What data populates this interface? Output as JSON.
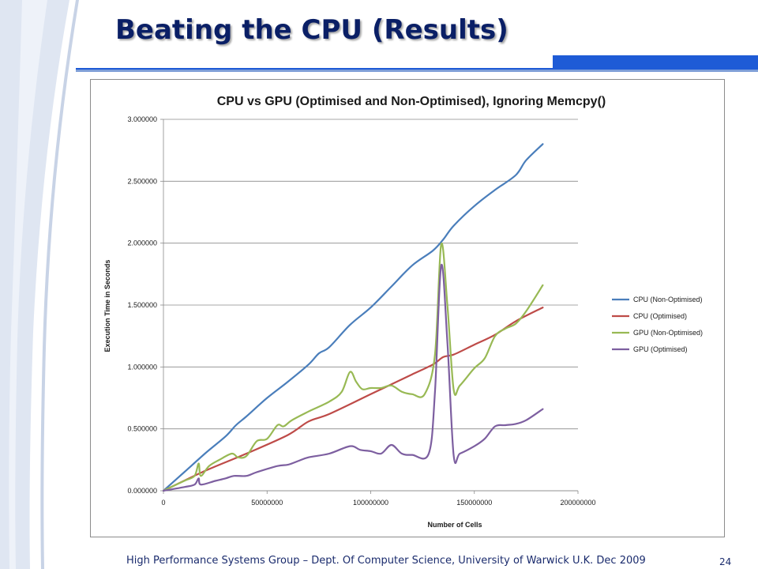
{
  "slide": {
    "title": "Beating the CPU (Results)",
    "footer": "High Performance Systems Group – Dept. Of Computer Science, University of Warwick U.K. Dec 2009",
    "page_number": "24"
  },
  "colors": {
    "title": "#0a1f66",
    "accent_blue": "#1e5bd6",
    "decor_light": "#dfe6f2"
  },
  "chart_data": {
    "type": "line",
    "title": "CPU vs GPU (Optimised and Non-Optimised), Ignoring Memcpy()",
    "xlabel": "Number of Cells",
    "ylabel": "Execution Time in Seconds",
    "xlim": [
      0,
      200000000
    ],
    "ylim": [
      0,
      3
    ],
    "x_ticks": [
      "0",
      "50000000",
      "100000000",
      "150000000",
      "200000000"
    ],
    "y_ticks": [
      "0.000000",
      "0.500000",
      "1.000000",
      "1.500000",
      "2.000000",
      "2.500000",
      "3.000000"
    ],
    "grid": "horizontal",
    "legend": "right",
    "series": [
      {
        "name": "CPU (Non-Optimised)",
        "color": "#4a7ebb",
        "points": [
          [
            0,
            0
          ],
          [
            10000000,
            0.15
          ],
          [
            20000000,
            0.3
          ],
          [
            30000000,
            0.44
          ],
          [
            35000000,
            0.53
          ],
          [
            40000000,
            0.6
          ],
          [
            50000000,
            0.75
          ],
          [
            60000000,
            0.88
          ],
          [
            70000000,
            1.02
          ],
          [
            75000000,
            1.11
          ],
          [
            80000000,
            1.16
          ],
          [
            90000000,
            1.34
          ],
          [
            100000000,
            1.48
          ],
          [
            110000000,
            1.65
          ],
          [
            120000000,
            1.82
          ],
          [
            130000000,
            1.94
          ],
          [
            135000000,
            2.03
          ],
          [
            140000000,
            2.14
          ],
          [
            150000000,
            2.3
          ],
          [
            160000000,
            2.43
          ],
          [
            170000000,
            2.55
          ],
          [
            175000000,
            2.67
          ],
          [
            183000000,
            2.8
          ]
        ]
      },
      {
        "name": "CPU (Optimised)",
        "color": "#be4b48",
        "points": [
          [
            0,
            0
          ],
          [
            20000000,
            0.16
          ],
          [
            40000000,
            0.3
          ],
          [
            60000000,
            0.45
          ],
          [
            70000000,
            0.56
          ],
          [
            80000000,
            0.62
          ],
          [
            100000000,
            0.78
          ],
          [
            110000000,
            0.86
          ],
          [
            120000000,
            0.94
          ],
          [
            130000000,
            1.02
          ],
          [
            135000000,
            1.08
          ],
          [
            140000000,
            1.1
          ],
          [
            150000000,
            1.18
          ],
          [
            160000000,
            1.26
          ],
          [
            170000000,
            1.37
          ],
          [
            183000000,
            1.48
          ]
        ]
      },
      {
        "name": "GPU (Non-Optimised)",
        "color": "#98b954",
        "points": [
          [
            0,
            0
          ],
          [
            10000000,
            0.08
          ],
          [
            15000000,
            0.12
          ],
          [
            17000000,
            0.22
          ],
          [
            18000000,
            0.12
          ],
          [
            22000000,
            0.2
          ],
          [
            27000000,
            0.25
          ],
          [
            33000000,
            0.3
          ],
          [
            36000000,
            0.27
          ],
          [
            40000000,
            0.28
          ],
          [
            45000000,
            0.4
          ],
          [
            50000000,
            0.42
          ],
          [
            55000000,
            0.53
          ],
          [
            58000000,
            0.52
          ],
          [
            62000000,
            0.57
          ],
          [
            70000000,
            0.64
          ],
          [
            80000000,
            0.72
          ],
          [
            86000000,
            0.8
          ],
          [
            90000000,
            0.96
          ],
          [
            93000000,
            0.88
          ],
          [
            96000000,
            0.82
          ],
          [
            100000000,
            0.83
          ],
          [
            105000000,
            0.83
          ],
          [
            110000000,
            0.85
          ],
          [
            115000000,
            0.8
          ],
          [
            120000000,
            0.78
          ],
          [
            126000000,
            0.78
          ],
          [
            131000000,
            1.1
          ],
          [
            134000000,
            1.99
          ],
          [
            137000000,
            1.5
          ],
          [
            140000000,
            0.82
          ],
          [
            143000000,
            0.85
          ],
          [
            150000000,
            0.99
          ],
          [
            155000000,
            1.07
          ],
          [
            160000000,
            1.25
          ],
          [
            165000000,
            1.31
          ],
          [
            170000000,
            1.35
          ],
          [
            175000000,
            1.45
          ],
          [
            183000000,
            1.66
          ]
        ]
      },
      {
        "name": "GPU (Optimised)",
        "color": "#7d5fa0",
        "points": [
          [
            0,
            0
          ],
          [
            10000000,
            0.03
          ],
          [
            15000000,
            0.05
          ],
          [
            17000000,
            0.1
          ],
          [
            18000000,
            0.05
          ],
          [
            25000000,
            0.08
          ],
          [
            30000000,
            0.1
          ],
          [
            34000000,
            0.12
          ],
          [
            40000000,
            0.12
          ],
          [
            45000000,
            0.15
          ],
          [
            55000000,
            0.2
          ],
          [
            60000000,
            0.21
          ],
          [
            65000000,
            0.24
          ],
          [
            70000000,
            0.27
          ],
          [
            80000000,
            0.3
          ],
          [
            90000000,
            0.36
          ],
          [
            95000000,
            0.33
          ],
          [
            100000000,
            0.32
          ],
          [
            105000000,
            0.3
          ],
          [
            110000000,
            0.37
          ],
          [
            115000000,
            0.3
          ],
          [
            120000000,
            0.29
          ],
          [
            128000000,
            0.3
          ],
          [
            131000000,
            0.8
          ],
          [
            134000000,
            1.82
          ],
          [
            137000000,
            1.2
          ],
          [
            140000000,
            0.29
          ],
          [
            143000000,
            0.3
          ],
          [
            150000000,
            0.36
          ],
          [
            155000000,
            0.42
          ],
          [
            160000000,
            0.52
          ],
          [
            165000000,
            0.53
          ],
          [
            170000000,
            0.54
          ],
          [
            175000000,
            0.57
          ],
          [
            183000000,
            0.66
          ]
        ]
      }
    ]
  }
}
